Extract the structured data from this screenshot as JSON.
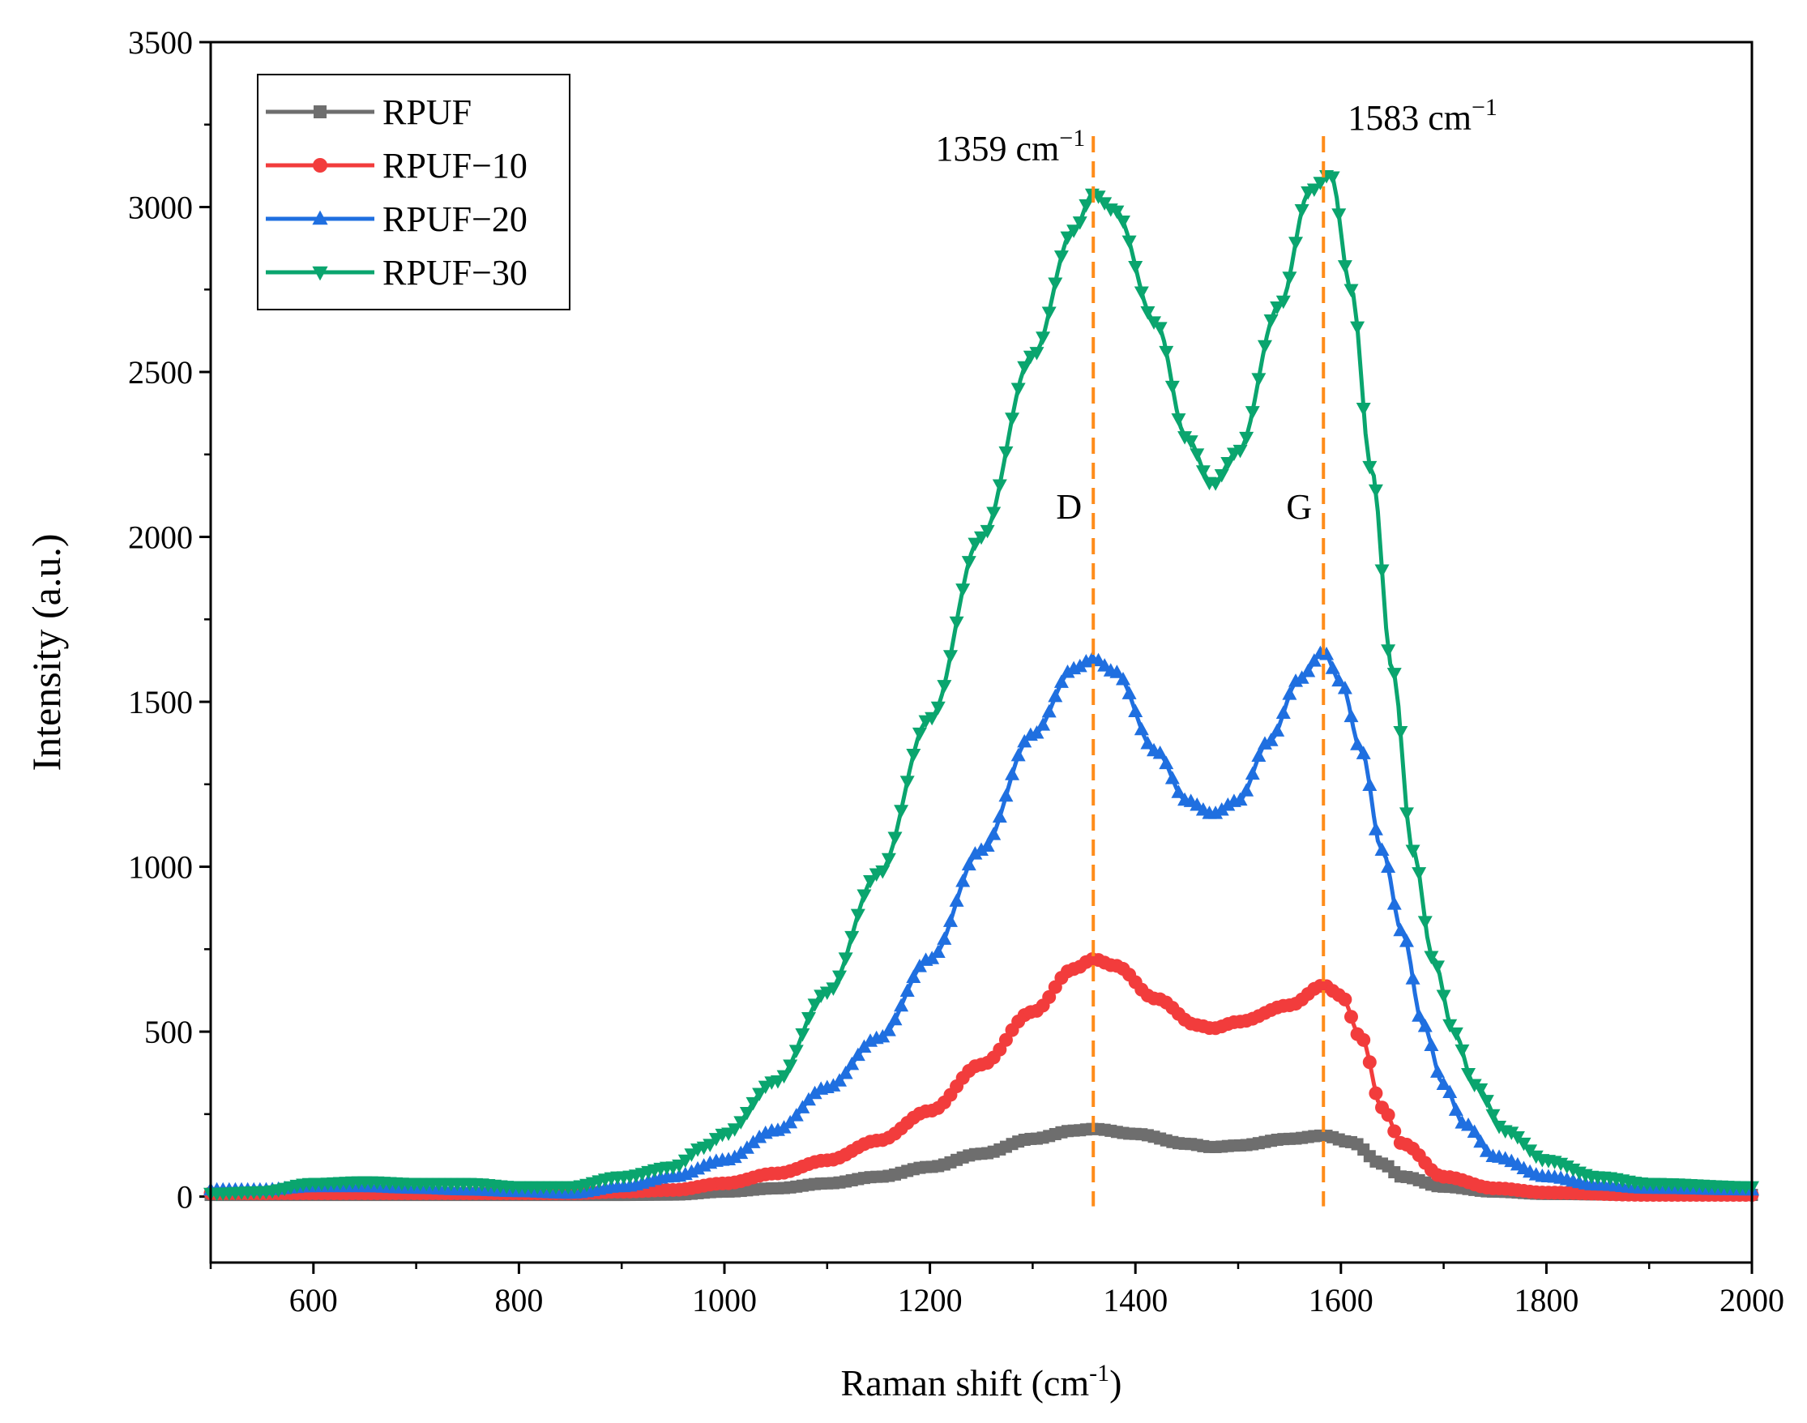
{
  "chart_data": {
    "type": "line",
    "title": "",
    "xlabel": "Raman shift (cm",
    "xlabel_sup": "-1",
    "xlabel_tail": ")",
    "ylabel": "Intensity (a.u.)",
    "xlim": [
      500,
      2000
    ],
    "ylim": [
      -200,
      3500
    ],
    "xticks": [
      600,
      800,
      1000,
      1200,
      1400,
      1600,
      1800,
      2000
    ],
    "yticks": [
      0,
      500,
      1000,
      1500,
      2000,
      2500,
      3000,
      3500
    ],
    "legend_position": "top-left",
    "series": [
      {
        "name": "RPUF",
        "color": "#6e6e6e",
        "marker": "square",
        "x": [
          500,
          600,
          700,
          800,
          850,
          900,
          950,
          1000,
          1050,
          1100,
          1150,
          1200,
          1250,
          1300,
          1340,
          1359,
          1400,
          1450,
          1475,
          1500,
          1550,
          1583,
          1610,
          1640,
          1660,
          1700,
          1750,
          1800,
          1900,
          2000
        ],
        "values": [
          5,
          5,
          5,
          5,
          5,
          5,
          6,
          15,
          25,
          40,
          60,
          90,
          130,
          175,
          200,
          205,
          190,
          160,
          150,
          155,
          175,
          185,
          165,
          100,
          60,
          30,
          15,
          8,
          5,
          5
        ]
      },
      {
        "name": "RPUF−10",
        "color": "#f23c3c",
        "marker": "circle",
        "x": [
          500,
          600,
          700,
          800,
          850,
          900,
          950,
          1000,
          1050,
          1100,
          1150,
          1200,
          1250,
          1300,
          1340,
          1359,
          1380,
          1420,
          1460,
          1475,
          1500,
          1550,
          1583,
          1600,
          1620,
          1640,
          1660,
          1700,
          1750,
          1800,
          1900,
          2000
        ],
        "values": [
          10,
          10,
          10,
          10,
          10,
          15,
          20,
          40,
          70,
          110,
          170,
          260,
          400,
          560,
          690,
          720,
          700,
          600,
          520,
          510,
          530,
          580,
          640,
          610,
          480,
          270,
          160,
          60,
          25,
          12,
          5,
          5
        ]
      },
      {
        "name": "RPUF−20",
        "color": "#1f6fe0",
        "marker": "triangle-up",
        "x": [
          500,
          550,
          600,
          650,
          700,
          750,
          800,
          850,
          900,
          950,
          1000,
          1050,
          1100,
          1150,
          1200,
          1250,
          1300,
          1340,
          1359,
          1380,
          1420,
          1450,
          1475,
          1500,
          1530,
          1560,
          1583,
          1600,
          1620,
          1640,
          1660,
          1680,
          1700,
          1720,
          1750,
          1800,
          1850,
          1900,
          2000
        ],
        "values": [
          20,
          20,
          30,
          30,
          25,
          20,
          15,
          10,
          30,
          60,
          110,
          200,
          330,
          480,
          720,
          1050,
          1400,
          1600,
          1630,
          1590,
          1350,
          1200,
          1160,
          1200,
          1380,
          1570,
          1650,
          1560,
          1350,
          1050,
          800,
          520,
          340,
          220,
          120,
          60,
          35,
          25,
          20
        ]
      },
      {
        "name": "RPUF−30",
        "color": "#0aa56e",
        "marker": "triangle-down",
        "x": [
          500,
          550,
          600,
          650,
          700,
          750,
          800,
          850,
          900,
          950,
          980,
          1000,
          1050,
          1100,
          1150,
          1200,
          1250,
          1300,
          1340,
          1359,
          1380,
          1420,
          1450,
          1475,
          1500,
          1540,
          1570,
          1590,
          1610,
          1630,
          1650,
          1670,
          1690,
          1710,
          1730,
          1760,
          1800,
          1850,
          1900,
          2000
        ],
        "values": [
          10,
          15,
          40,
          45,
          40,
          40,
          30,
          30,
          60,
          90,
          150,
          190,
          350,
          620,
          980,
          1450,
          2000,
          2550,
          2930,
          3040,
          2990,
          2650,
          2300,
          2160,
          2260,
          2700,
          3050,
          3100,
          2750,
          2200,
          1600,
          1050,
          720,
          500,
          340,
          200,
          110,
          60,
          40,
          30
        ]
      }
    ],
    "annotations": [
      {
        "label": "1359 cm",
        "sup": "−1",
        "x": 1359,
        "band": "D"
      },
      {
        "label": "1583 cm",
        "sup": "−1",
        "x": 1583,
        "band": "G"
      }
    ],
    "reference_line_color": "#ff8c1a"
  }
}
